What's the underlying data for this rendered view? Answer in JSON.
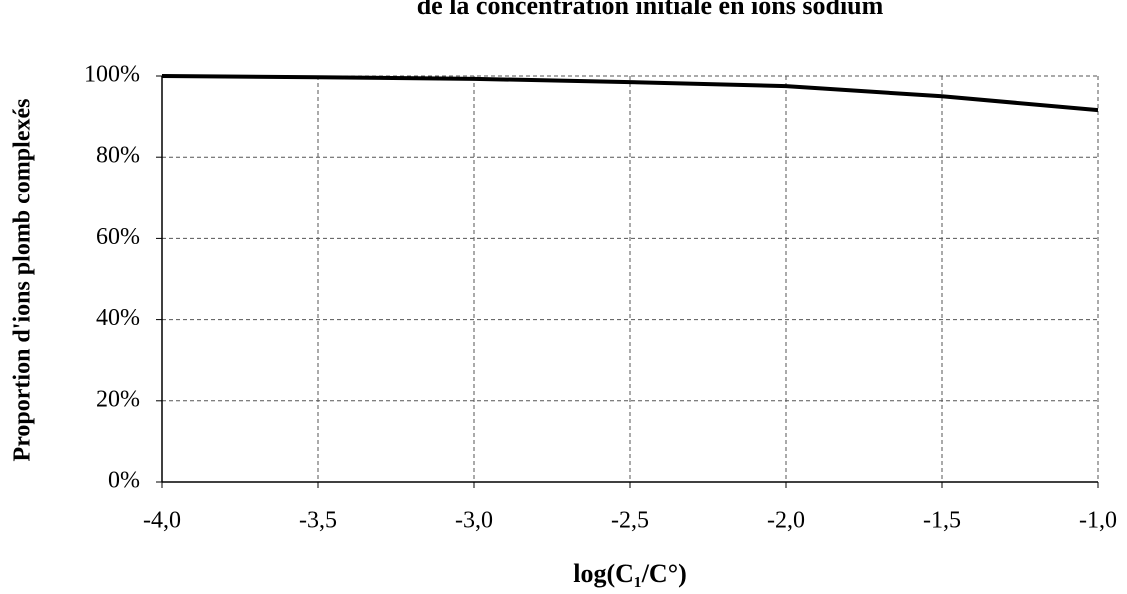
{
  "chart_data": {
    "type": "line",
    "title": "de la concentration initiale  en ions sodium",
    "xlabel": "log(C₁/C°)",
    "ylabel": "Proportion d'ions plomb complexés",
    "x": [
      -4.0,
      -3.5,
      -3.0,
      -2.5,
      -2.0,
      -1.5,
      -1.0
    ],
    "series": [
      {
        "color": "#000000",
        "values": [
          100,
          99.7,
          99.3,
          98.5,
          97.5,
          95,
          91.6
        ]
      }
    ],
    "xlim": [
      -4,
      -1
    ],
    "xticks": [
      {
        "value": -4,
        "label": "-4,0"
      },
      {
        "value": -3.5,
        "label": "-3,5"
      },
      {
        "value": -3,
        "label": "-3,0"
      },
      {
        "value": -2.5,
        "label": "-2,5"
      },
      {
        "value": -2,
        "label": "-2,0"
      },
      {
        "value": -1.5,
        "label": "-1,5"
      },
      {
        "value": -1,
        "label": "-1,0"
      }
    ],
    "ylim": [
      0,
      100
    ],
    "yticks": [
      {
        "value": 0,
        "label": "0%"
      },
      {
        "value": 20,
        "label": "20%"
      },
      {
        "value": 40,
        "label": "40%"
      },
      {
        "value": 60,
        "label": "60%"
      },
      {
        "value": 80,
        "label": "80%"
      },
      {
        "value": 100,
        "label": "100%"
      }
    ],
    "grid": true
  }
}
